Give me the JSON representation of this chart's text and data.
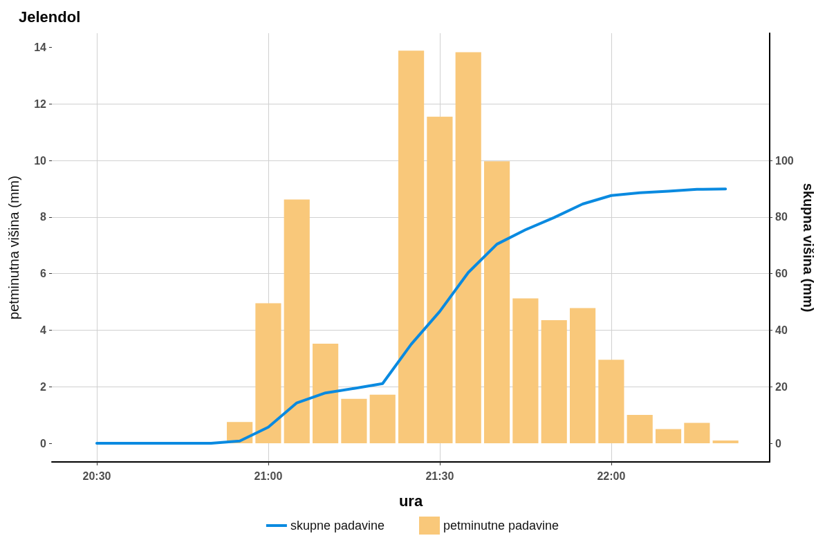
{
  "chart_data": {
    "type": "bar",
    "title": "Jelendol",
    "xlabel": "ura",
    "ylabel": "petminutna višina (mm)",
    "y2label": "skupna višina (mm)",
    "xlim": [
      20.369,
      22.462
    ],
    "xticks": [
      {
        "value": 20.5,
        "label": "20:30"
      },
      {
        "value": 21,
        "label": "21:00"
      },
      {
        "value": 21.5,
        "label": "21:30"
      },
      {
        "value": 22,
        "label": "22:00"
      }
    ],
    "ylim": [
      -0.66,
      14.5
    ],
    "yticks": [
      0,
      2,
      4,
      6,
      8,
      10,
      12,
      14
    ],
    "y2lim": [
      -6.6,
      145
    ],
    "y2ticks": [
      0,
      20,
      40,
      60,
      80,
      100
    ],
    "series": [
      {
        "name": "skupne padavine",
        "type": "line",
        "axis": "y2",
        "color": "#0a8ae0",
        "x": [
          20.5,
          20.5833,
          20.6667,
          20.75,
          20.8333,
          20.9167,
          21,
          21.0833,
          21.1667,
          21.25,
          21.3333,
          21.4167,
          21.5,
          21.5833,
          21.6667,
          21.75,
          21.8333,
          21.9167,
          22,
          22.0833,
          22.1667,
          22.25,
          22.3333
        ],
        "values": [
          0,
          0,
          0,
          0,
          0,
          0.8,
          5.7,
          14.3,
          17.8,
          19.4,
          21.1,
          35,
          46.6,
          60.4,
          70.4,
          75.5,
          79.8,
          84.6,
          87.6,
          88.6,
          89.1,
          89.8,
          89.9
        ]
      },
      {
        "name": "petminutne padavine",
        "color": "#f9c87a",
        "x": [
          20.9167,
          21,
          21.0833,
          21.1667,
          21.25,
          21.3333,
          21.4167,
          21.5,
          21.5833,
          21.6667,
          21.75,
          21.8333,
          21.9167,
          22,
          22.0833,
          22.1667,
          22.25,
          22.3333
        ],
        "values": [
          0.75,
          4.95,
          8.62,
          3.52,
          1.57,
          1.72,
          13.88,
          11.55,
          13.83,
          9.97,
          5.12,
          4.35,
          4.78,
          2.95,
          1.0,
          0.5,
          0.72,
          0.1
        ]
      }
    ],
    "grid": true,
    "legend": "bottom",
    "marker": "none",
    "line_style": "solid"
  }
}
